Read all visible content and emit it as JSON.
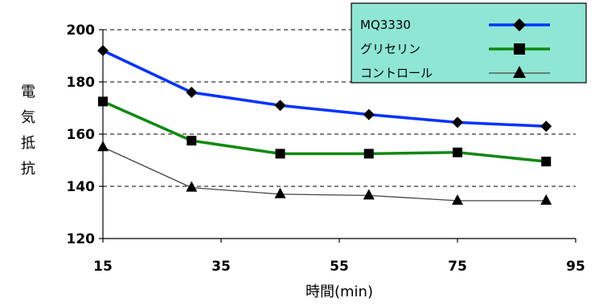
{
  "chart_data": {
    "type": "line",
    "xlabel": "時間(min)",
    "ylabel": "電気抵抗",
    "xlim": [
      15,
      95
    ],
    "ylim": [
      120,
      200
    ],
    "xticks": [
      15,
      35,
      55,
      75,
      95
    ],
    "yticks": [
      120,
      140,
      160,
      180,
      200
    ],
    "grid": "horizontal dashed",
    "legend_position": "top-right",
    "series": [
      {
        "name": "MQ3330",
        "color": "#0033ff",
        "marker": "diamond",
        "x": [
          15,
          30,
          45,
          60,
          75,
          90
        ],
        "values": [
          192,
          176,
          171,
          167.5,
          164.5,
          163
        ]
      },
      {
        "name": "グリセリン",
        "color": "#118811",
        "marker": "square",
        "x": [
          15,
          30,
          45,
          60,
          75,
          90
        ],
        "values": [
          172.5,
          157.5,
          152.5,
          152.5,
          153,
          149.5
        ]
      },
      {
        "name": "コントロール",
        "color": "#444444",
        "marker": "triangle",
        "x": [
          15,
          30,
          45,
          60,
          75,
          90
        ],
        "values": [
          155,
          139.5,
          137,
          136.5,
          134.5,
          134.5
        ]
      }
    ]
  }
}
